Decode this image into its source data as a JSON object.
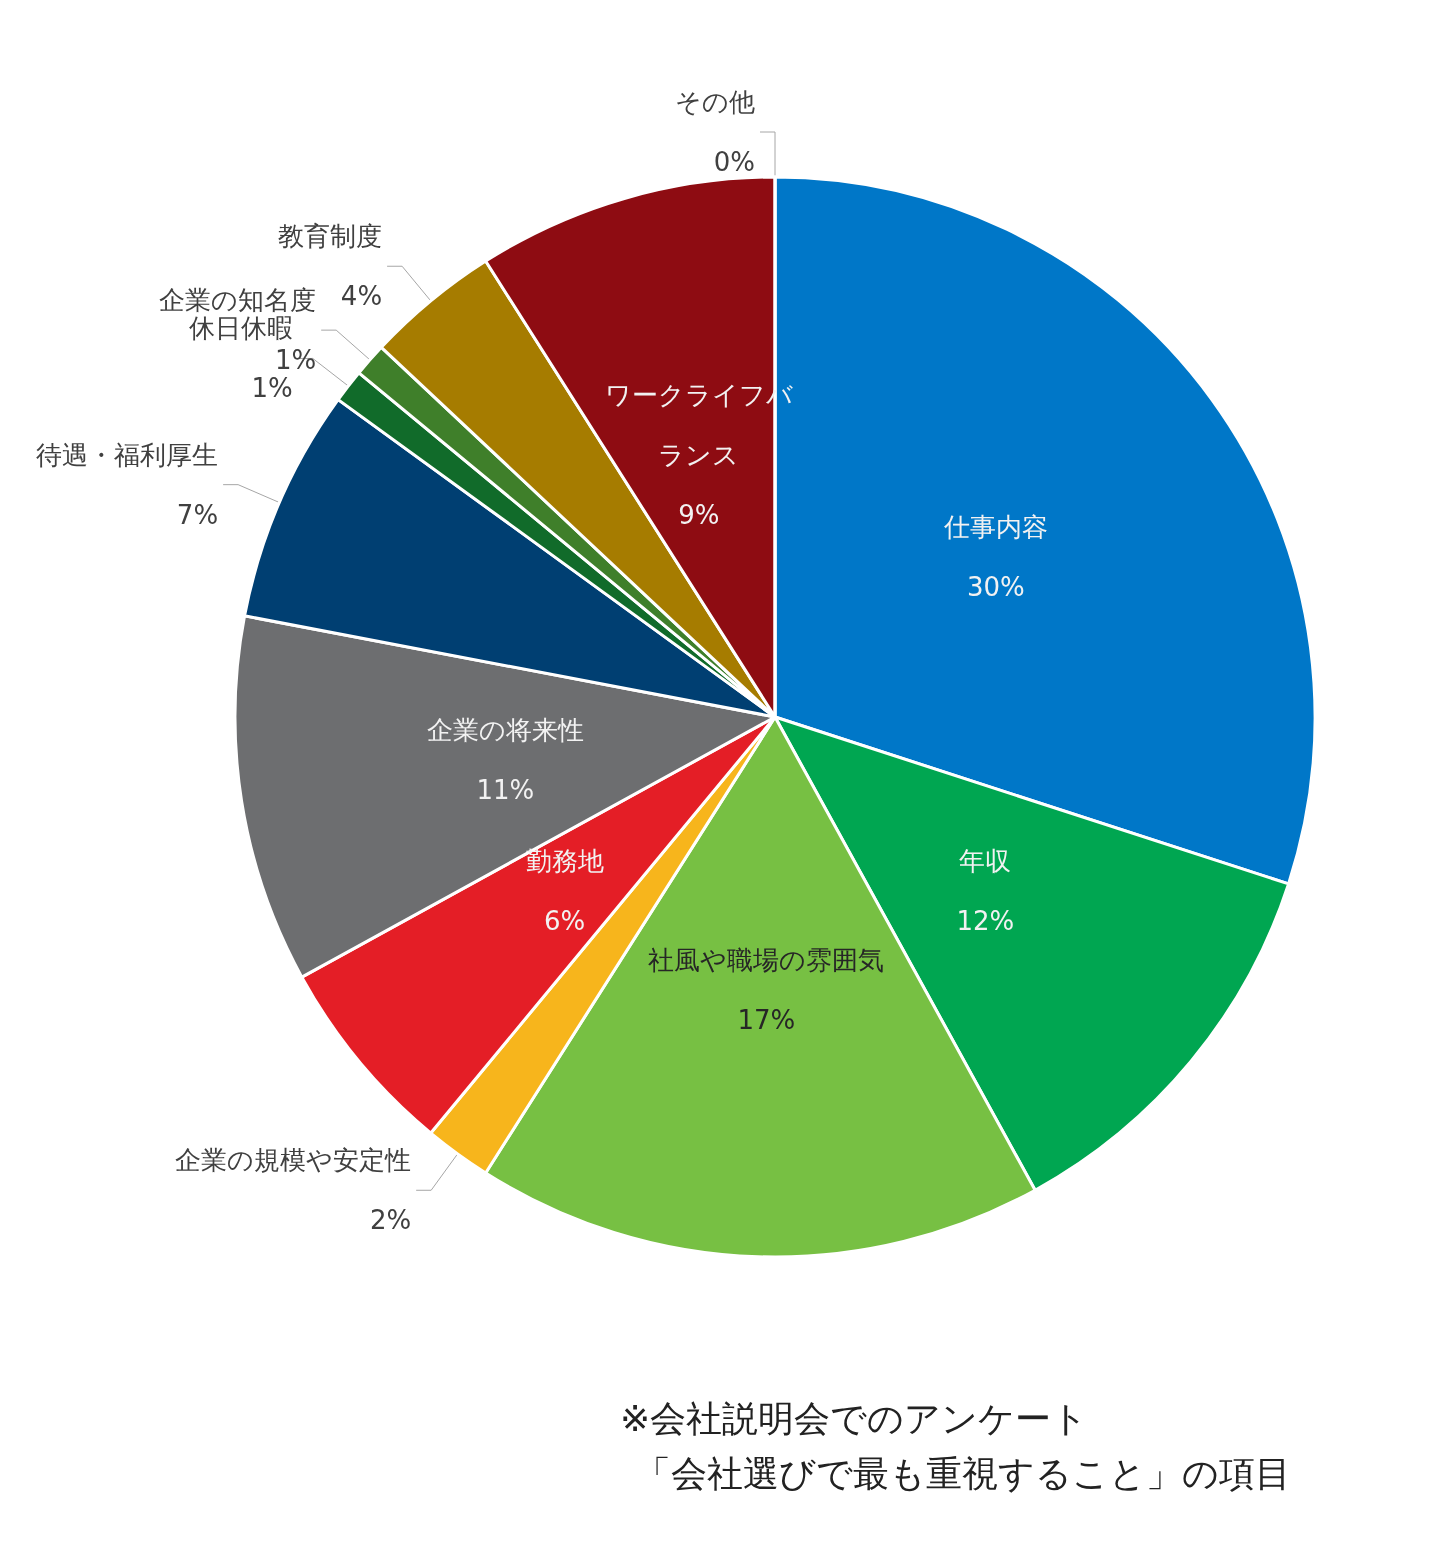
{
  "chart_data": {
    "type": "pie",
    "categories": [
      "仕事内容",
      "年収",
      "社風や職場の雰囲気",
      "企業の規模や安定性",
      "勤務地",
      "企業の将来性",
      "待遇・福利厚生",
      "休日休暇",
      "企業の知名度",
      "教育制度",
      "ワークライフバランス",
      "その他"
    ],
    "values": [
      30,
      12,
      17,
      2,
      6,
      11,
      7,
      1,
      1,
      4,
      9,
      0
    ],
    "colors": [
      "#0077c8",
      "#00a651",
      "#77c043",
      "#f7b51c",
      "#e41e26",
      "#6d6e70",
      "#003f72",
      "#116b2a",
      "#3f7f2a",
      "#a67c00",
      "#8e0c12",
      "#a5a5a5"
    ],
    "value_labels": [
      "30%",
      "12%",
      "17%",
      "2%",
      "6%",
      "11%",
      "7%",
      "1%",
      "1%",
      "4%",
      "9%",
      "0%"
    ],
    "legend": false,
    "annotations": [
      "※会社説明会でのアンケート",
      "「会社選びで最も重視すること」の項目"
    ]
  }
}
